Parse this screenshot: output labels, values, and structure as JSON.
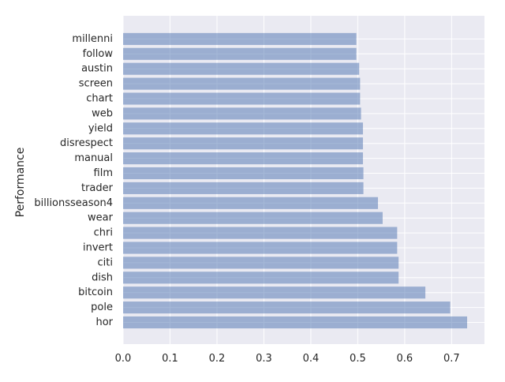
{
  "chart_data": {
    "type": "bar",
    "orientation": "horizontal",
    "categories": [
      "hor",
      "pole",
      "bitcoin",
      "dish",
      "citi",
      "invert",
      "chri",
      "wear",
      "billionsseason4",
      "trader",
      "film",
      "manual",
      "disrespect",
      "yield",
      "web",
      "chart",
      "screen",
      "austin",
      "follow",
      "millenni"
    ],
    "values": [
      0.733,
      0.697,
      0.644,
      0.587,
      0.587,
      0.584,
      0.584,
      0.553,
      0.543,
      0.512,
      0.512,
      0.511,
      0.511,
      0.511,
      0.507,
      0.505,
      0.505,
      0.503,
      0.497,
      0.497
    ],
    "title": "",
    "xlabel": "",
    "ylabel": "Performance",
    "xlim": [
      0,
      0.77
    ],
    "xticks": [
      "0.0",
      "0.1",
      "0.2",
      "0.3",
      "0.4",
      "0.5",
      "0.6",
      "0.7"
    ],
    "grid": true,
    "bar_color": "#4c72b0",
    "bar_alpha": 0.5,
    "background_color": "#eaeaf2",
    "grid_color": "#ffffff"
  }
}
